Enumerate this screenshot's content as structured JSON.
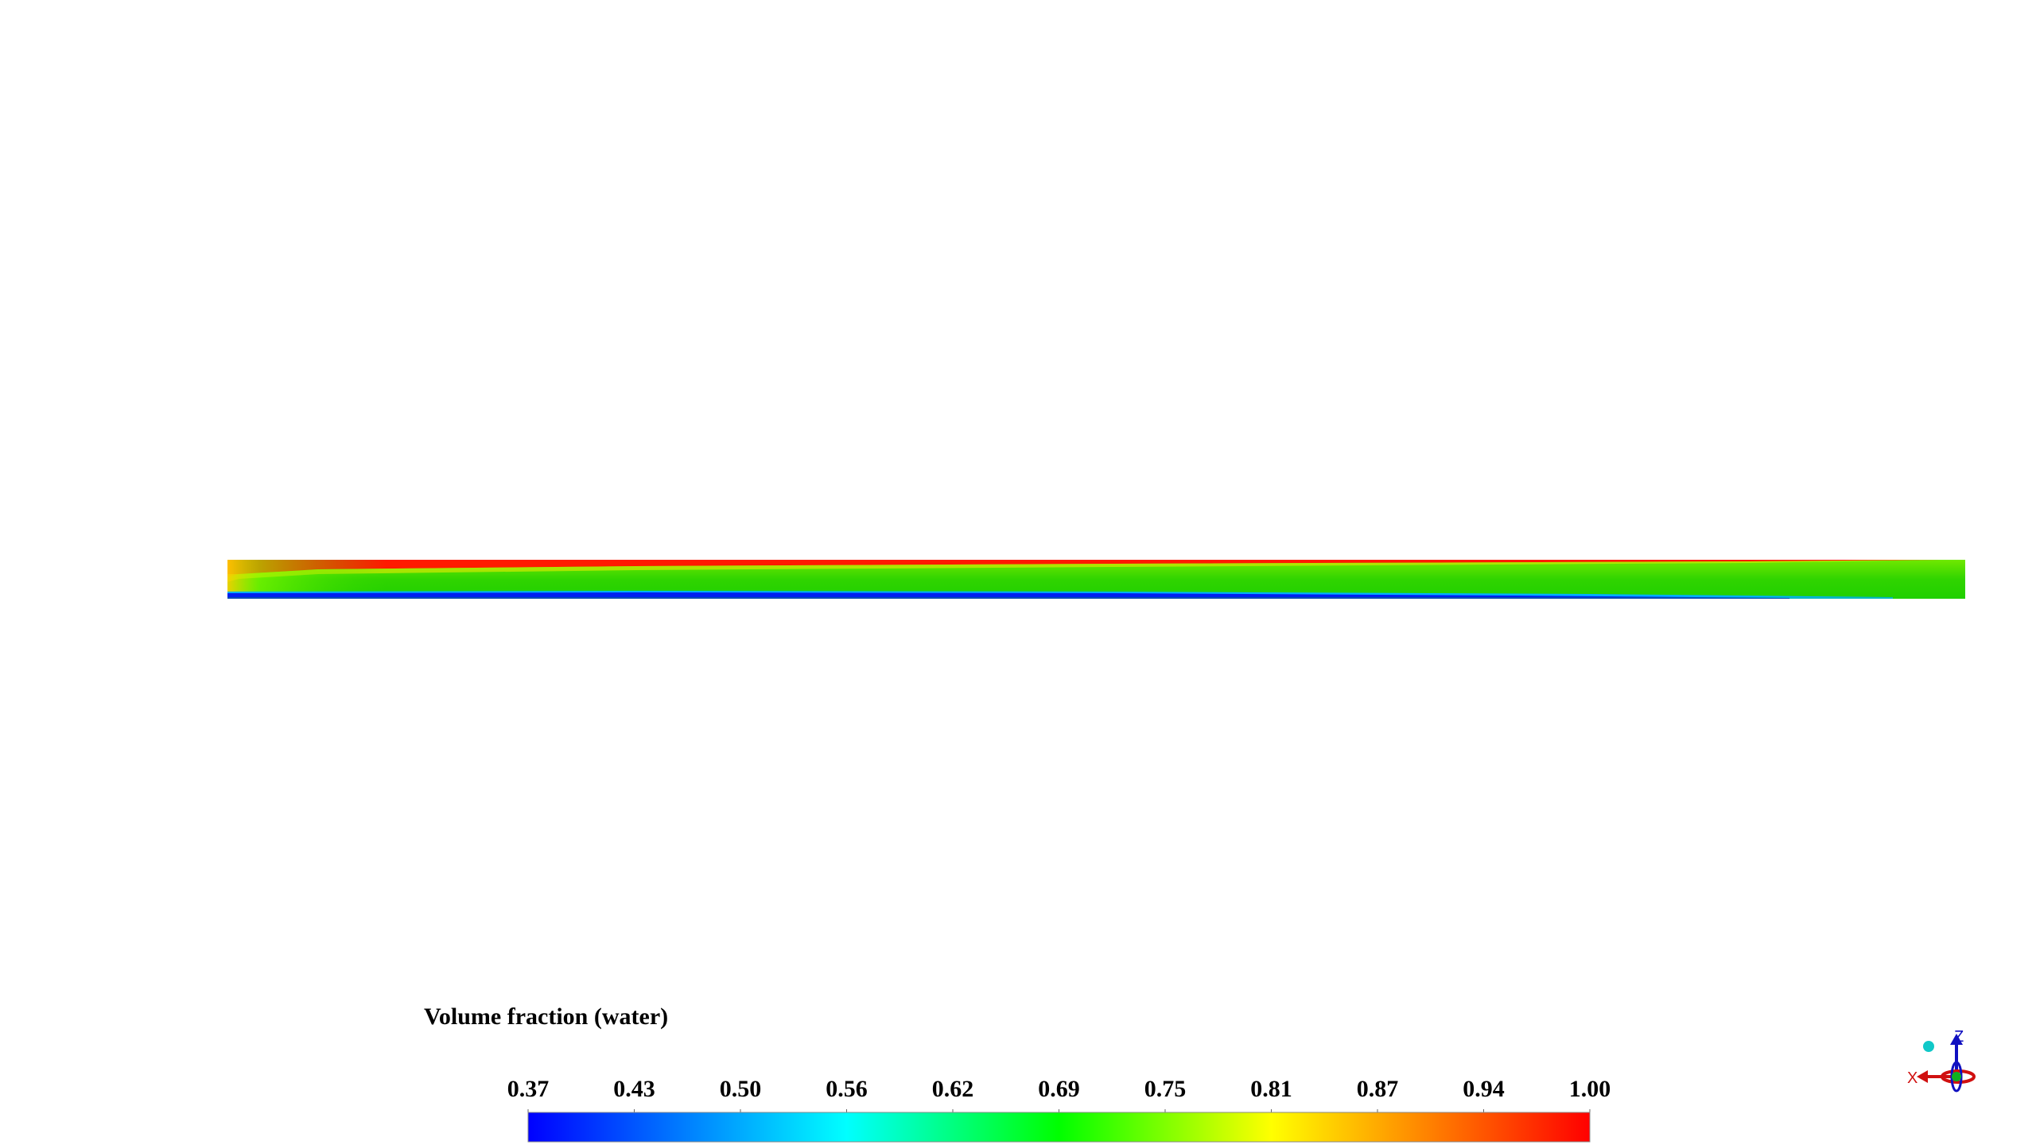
{
  "colorbar": {
    "title": "Volume fraction (water)",
    "labels": [
      "0.37",
      "0.43",
      "0.50",
      "0.56",
      "0.62",
      "0.69",
      "0.75",
      "0.81",
      "0.87",
      "0.94",
      "1.00"
    ]
  },
  "axes_triad": {
    "z_label": "Z",
    "x_label": "X"
  }
}
